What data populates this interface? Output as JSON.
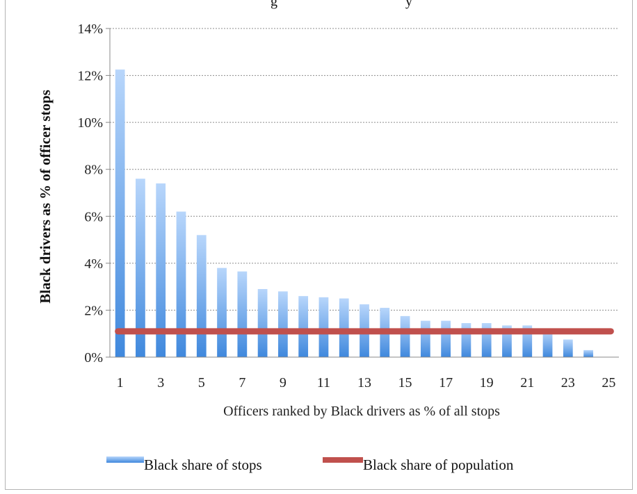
{
  "chart_data": {
    "type": "bar",
    "title_fragment": "g",
    "title_fragment_2": "y",
    "xlabel": "Officers ranked by Black drivers as % of all stops",
    "ylabel": "Black drivers as % of officer stops",
    "ylim": [
      0,
      14
    ],
    "y_ticks": [
      "0%",
      "2%",
      "4%",
      "6%",
      "8%",
      "10%",
      "12%",
      "14%"
    ],
    "y_tick_values": [
      0,
      2,
      4,
      6,
      8,
      10,
      12,
      14
    ],
    "x_ticks": [
      "1",
      "3",
      "5",
      "7",
      "9",
      "11",
      "13",
      "15",
      "17",
      "19",
      "21",
      "23",
      "25"
    ],
    "categories": [
      1,
      2,
      3,
      4,
      5,
      6,
      7,
      8,
      9,
      10,
      11,
      12,
      13,
      14,
      15,
      16,
      17,
      18,
      19,
      20,
      21,
      22,
      23,
      24,
      25
    ],
    "grid": true,
    "legend_position": "bottom",
    "series": [
      {
        "name": "Black share of stops",
        "kind": "bar",
        "color_top": "#b8d6fb",
        "color_bottom": "#3f88dd",
        "values": [
          12.25,
          7.6,
          7.4,
          6.2,
          5.2,
          3.8,
          3.65,
          2.9,
          2.8,
          2.6,
          2.55,
          2.5,
          2.25,
          2.1,
          1.75,
          1.55,
          1.55,
          1.45,
          1.45,
          1.35,
          1.35,
          1.1,
          0.75,
          0.3,
          0
        ]
      },
      {
        "name": "Black share of population",
        "kind": "line",
        "color": "#c0504d",
        "values": [
          1.1,
          1.1,
          1.1,
          1.1,
          1.1,
          1.1,
          1.1,
          1.1,
          1.1,
          1.1,
          1.1,
          1.1,
          1.1,
          1.1,
          1.1,
          1.1,
          1.1,
          1.1,
          1.1,
          1.1,
          1.1,
          1.1,
          1.1,
          1.1,
          1.1
        ]
      }
    ]
  }
}
